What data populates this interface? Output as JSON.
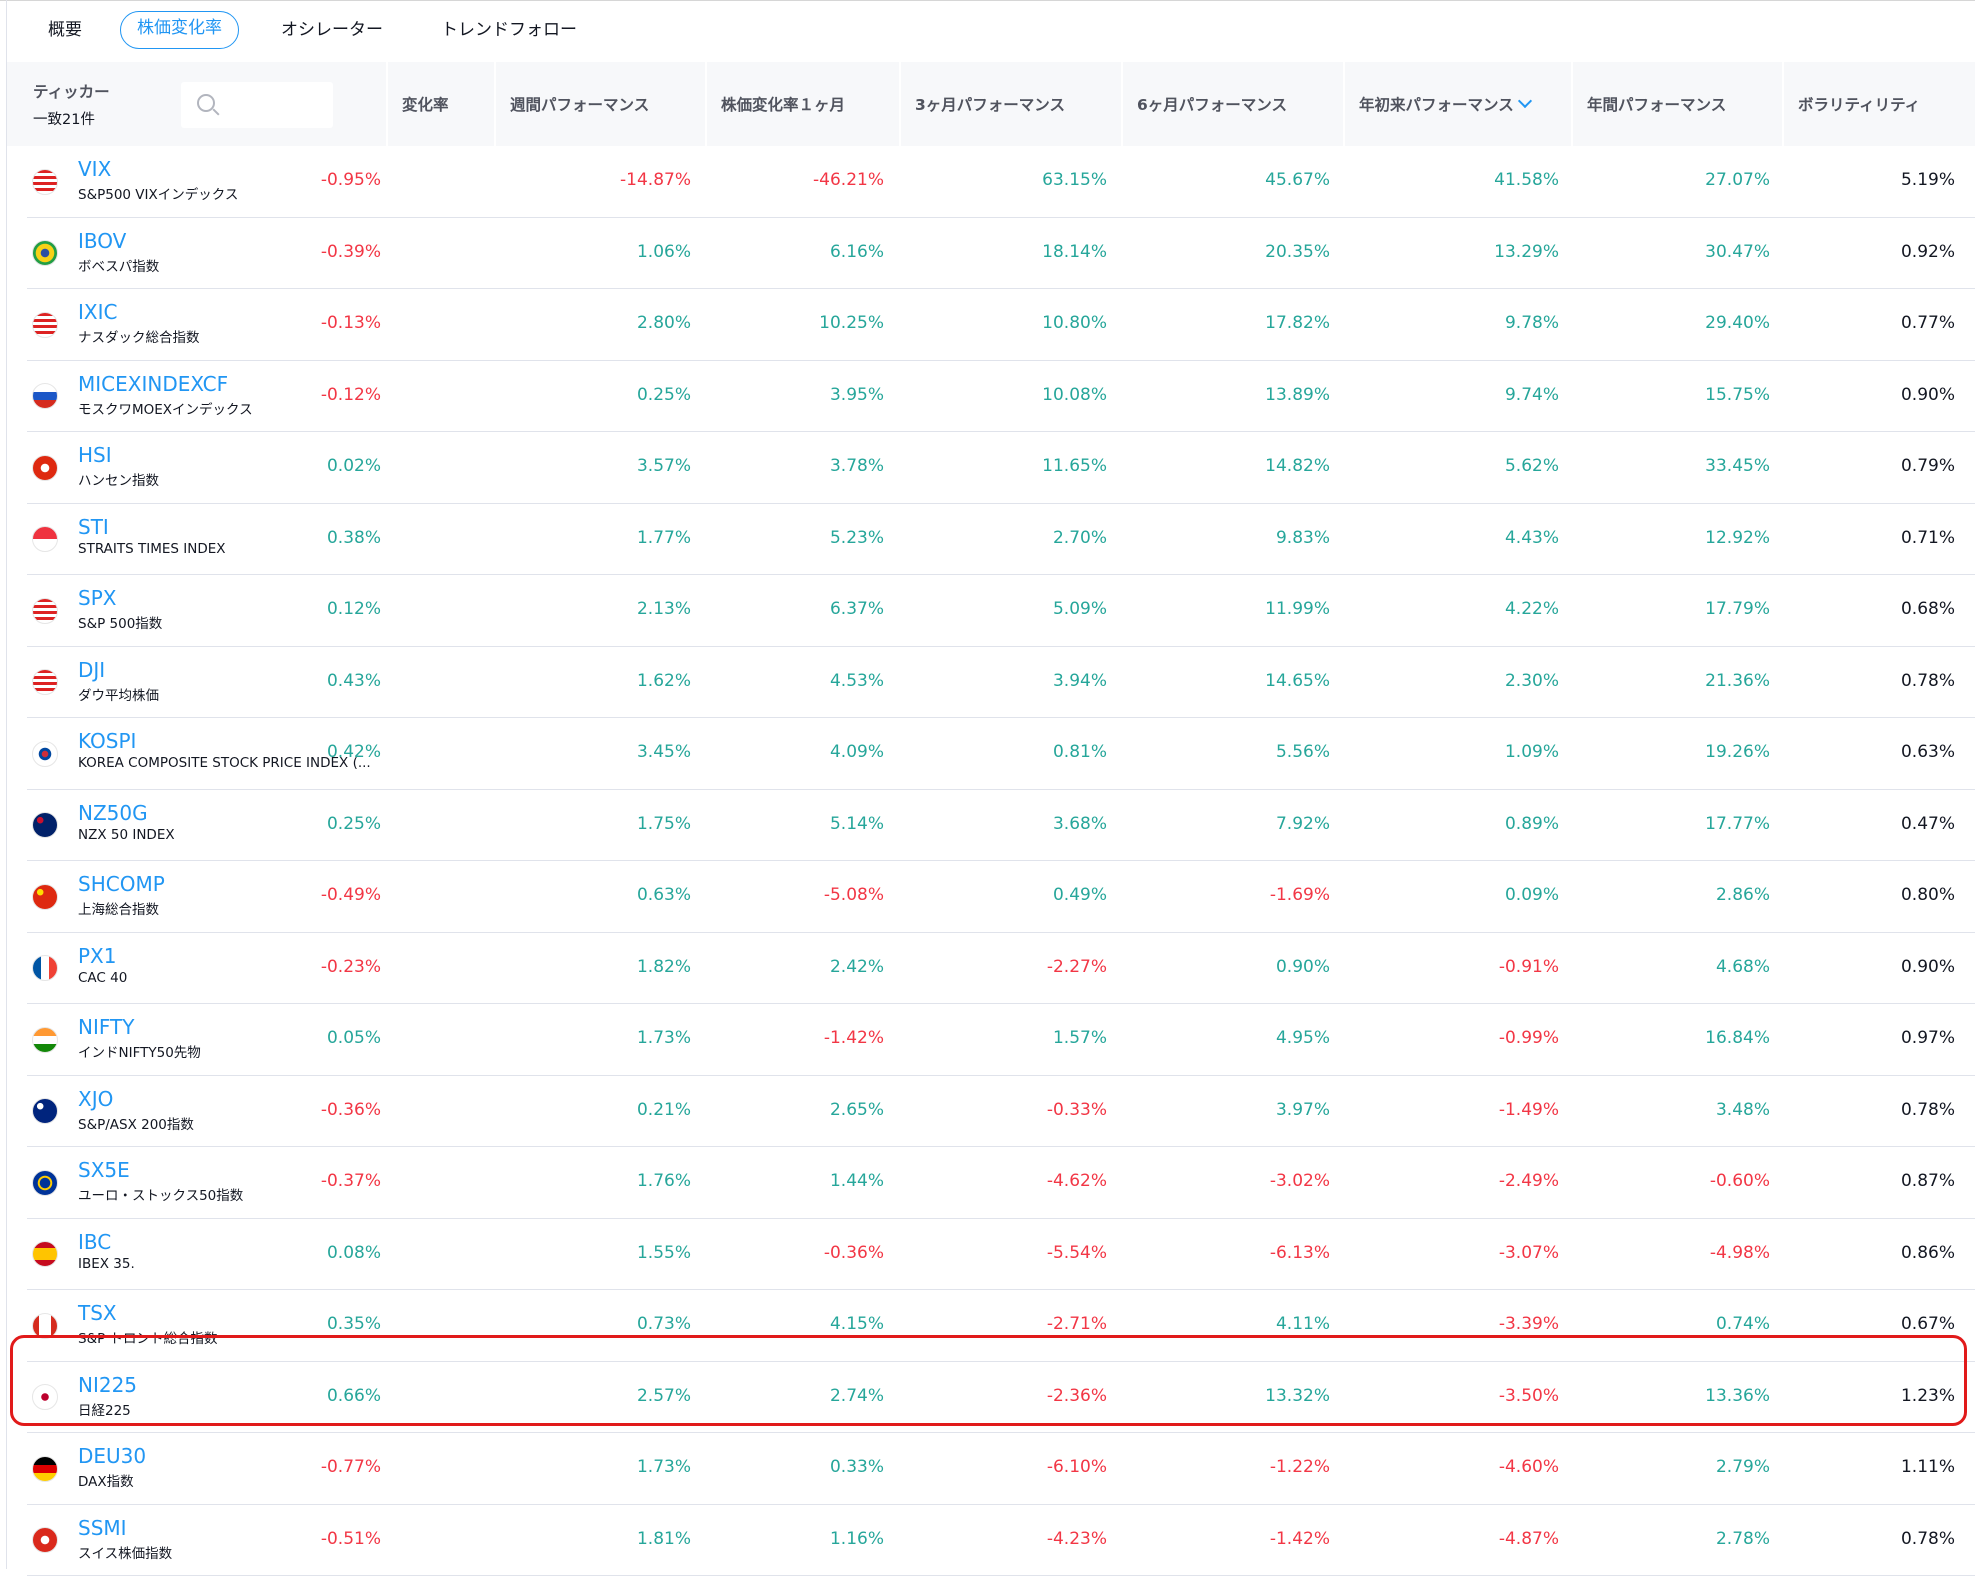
{
  "tabs": [
    "概要",
    "株価変化率",
    "オシレーター",
    "トレンドフォロー"
  ],
  "active_tab": 1,
  "header": {
    "ticker_label": "ティッカー",
    "count_label": "一致21件",
    "search_placeholder": "",
    "columns": [
      "変化率",
      "週間パフォーマンス",
      "株価変化率１ヶ月",
      "3ヶ月パフォーマンス",
      "6ヶ月パフォーマンス",
      "年初来パフォーマンス",
      "年間パフォーマンス",
      "ボラリティリティ"
    ],
    "sort_icon": "sort-icon"
  },
  "colors": {
    "accent": "#2196f3",
    "positive": "#26a69a",
    "negative": "#f23645",
    "highlight_border": "#e11a1a"
  },
  "rows": [
    {
      "symbol": "VIX",
      "description": "S&P500 VIXインデックス",
      "flag": "us",
      "values": [
        "-0.95%",
        "-14.87%",
        "-46.21%",
        "63.15%",
        "45.67%",
        "41.58%",
        "27.07%",
        "5.19%"
      ]
    },
    {
      "symbol": "IBOV",
      "description": "ボベスパ指数",
      "flag": "br",
      "values": [
        "-0.39%",
        "1.06%",
        "6.16%",
        "18.14%",
        "20.35%",
        "13.29%",
        "30.47%",
        "0.92%"
      ]
    },
    {
      "symbol": "IXIC",
      "description": "ナスダック総合指数",
      "flag": "us",
      "values": [
        "-0.13%",
        "2.80%",
        "10.25%",
        "10.80%",
        "17.82%",
        "9.78%",
        "29.40%",
        "0.77%"
      ]
    },
    {
      "symbol": "MICEXINDEXCF",
      "description": "モスクワMOEXインデックス",
      "flag": "ru",
      "values": [
        "-0.12%",
        "0.25%",
        "3.95%",
        "10.08%",
        "13.89%",
        "9.74%",
        "15.75%",
        "0.90%"
      ]
    },
    {
      "symbol": "HSI",
      "description": "ハンセン指数",
      "flag": "hk",
      "values": [
        "0.02%",
        "3.57%",
        "3.78%",
        "11.65%",
        "14.82%",
        "5.62%",
        "33.45%",
        "0.79%"
      ]
    },
    {
      "symbol": "STI",
      "description": "STRAITS TIMES INDEX",
      "flag": "sg",
      "values": [
        "0.38%",
        "1.77%",
        "5.23%",
        "2.70%",
        "9.83%",
        "4.43%",
        "12.92%",
        "0.71%"
      ]
    },
    {
      "symbol": "SPX",
      "description": "S&P 500指数",
      "flag": "us",
      "values": [
        "0.12%",
        "2.13%",
        "6.37%",
        "5.09%",
        "11.99%",
        "4.22%",
        "17.79%",
        "0.68%"
      ]
    },
    {
      "symbol": "DJI",
      "description": "ダウ平均株価",
      "flag": "us",
      "values": [
        "0.43%",
        "1.62%",
        "4.53%",
        "3.94%",
        "14.65%",
        "2.30%",
        "21.36%",
        "0.78%"
      ]
    },
    {
      "symbol": "KOSPI",
      "description": "KOREA COMPOSITE STOCK PRICE INDEX (...",
      "flag": "kr",
      "values": [
        "0.42%",
        "3.45%",
        "4.09%",
        "0.81%",
        "5.56%",
        "1.09%",
        "19.26%",
        "0.63%"
      ]
    },
    {
      "symbol": "NZ50G",
      "description": "NZX 50 INDEX",
      "flag": "nz",
      "values": [
        "0.25%",
        "1.75%",
        "5.14%",
        "3.68%",
        "7.92%",
        "0.89%",
        "17.77%",
        "0.47%"
      ]
    },
    {
      "symbol": "SHCOMP",
      "description": "上海総合指数",
      "flag": "cn",
      "values": [
        "-0.49%",
        "0.63%",
        "-5.08%",
        "0.49%",
        "-1.69%",
        "0.09%",
        "2.86%",
        "0.80%"
      ]
    },
    {
      "symbol": "PX1",
      "description": "CAC 40",
      "flag": "fr",
      "values": [
        "-0.23%",
        "1.82%",
        "2.42%",
        "-2.27%",
        "0.90%",
        "-0.91%",
        "4.68%",
        "0.90%"
      ]
    },
    {
      "symbol": "NIFTY",
      "description": "インドNIFTY50先物",
      "flag": "in",
      "values": [
        "0.05%",
        "1.73%",
        "-1.42%",
        "1.57%",
        "4.95%",
        "-0.99%",
        "16.84%",
        "0.97%"
      ]
    },
    {
      "symbol": "XJO",
      "description": "S&P/ASX 200指数",
      "flag": "au",
      "values": [
        "-0.36%",
        "0.21%",
        "2.65%",
        "-0.33%",
        "3.97%",
        "-1.49%",
        "3.48%",
        "0.78%"
      ]
    },
    {
      "symbol": "SX5E",
      "description": "ユーロ・ストックス50指数",
      "flag": "eu",
      "values": [
        "-0.37%",
        "1.76%",
        "1.44%",
        "-4.62%",
        "-3.02%",
        "-2.49%",
        "-0.60%",
        "0.87%"
      ]
    },
    {
      "symbol": "IBC",
      "description": "IBEX 35.",
      "flag": "es",
      "values": [
        "0.08%",
        "1.55%",
        "-0.36%",
        "-5.54%",
        "-6.13%",
        "-3.07%",
        "-4.98%",
        "0.86%"
      ]
    },
    {
      "symbol": "TSX",
      "description": "S&P トロント総合指数",
      "flag": "ca",
      "values": [
        "0.35%",
        "0.73%",
        "4.15%",
        "-2.71%",
        "4.11%",
        "-3.39%",
        "0.74%",
        "0.67%"
      ]
    },
    {
      "symbol": "NI225",
      "description": "日経225",
      "flag": "jp",
      "highlighted": true,
      "values": [
        "0.66%",
        "2.57%",
        "2.74%",
        "-2.36%",
        "13.32%",
        "-3.50%",
        "13.36%",
        "1.23%"
      ]
    },
    {
      "symbol": "DEU30",
      "description": "DAX指数",
      "flag": "de",
      "values": [
        "-0.77%",
        "1.73%",
        "0.33%",
        "-6.10%",
        "-1.22%",
        "-4.60%",
        "2.79%",
        "1.11%"
      ]
    },
    {
      "symbol": "SSMI",
      "description": "スイス株価指数",
      "flag": "ch",
      "values": [
        "-0.51%",
        "1.81%",
        "1.16%",
        "-4.23%",
        "-1.42%",
        "-4.87%",
        "2.78%",
        "0.78%"
      ]
    }
  ]
}
